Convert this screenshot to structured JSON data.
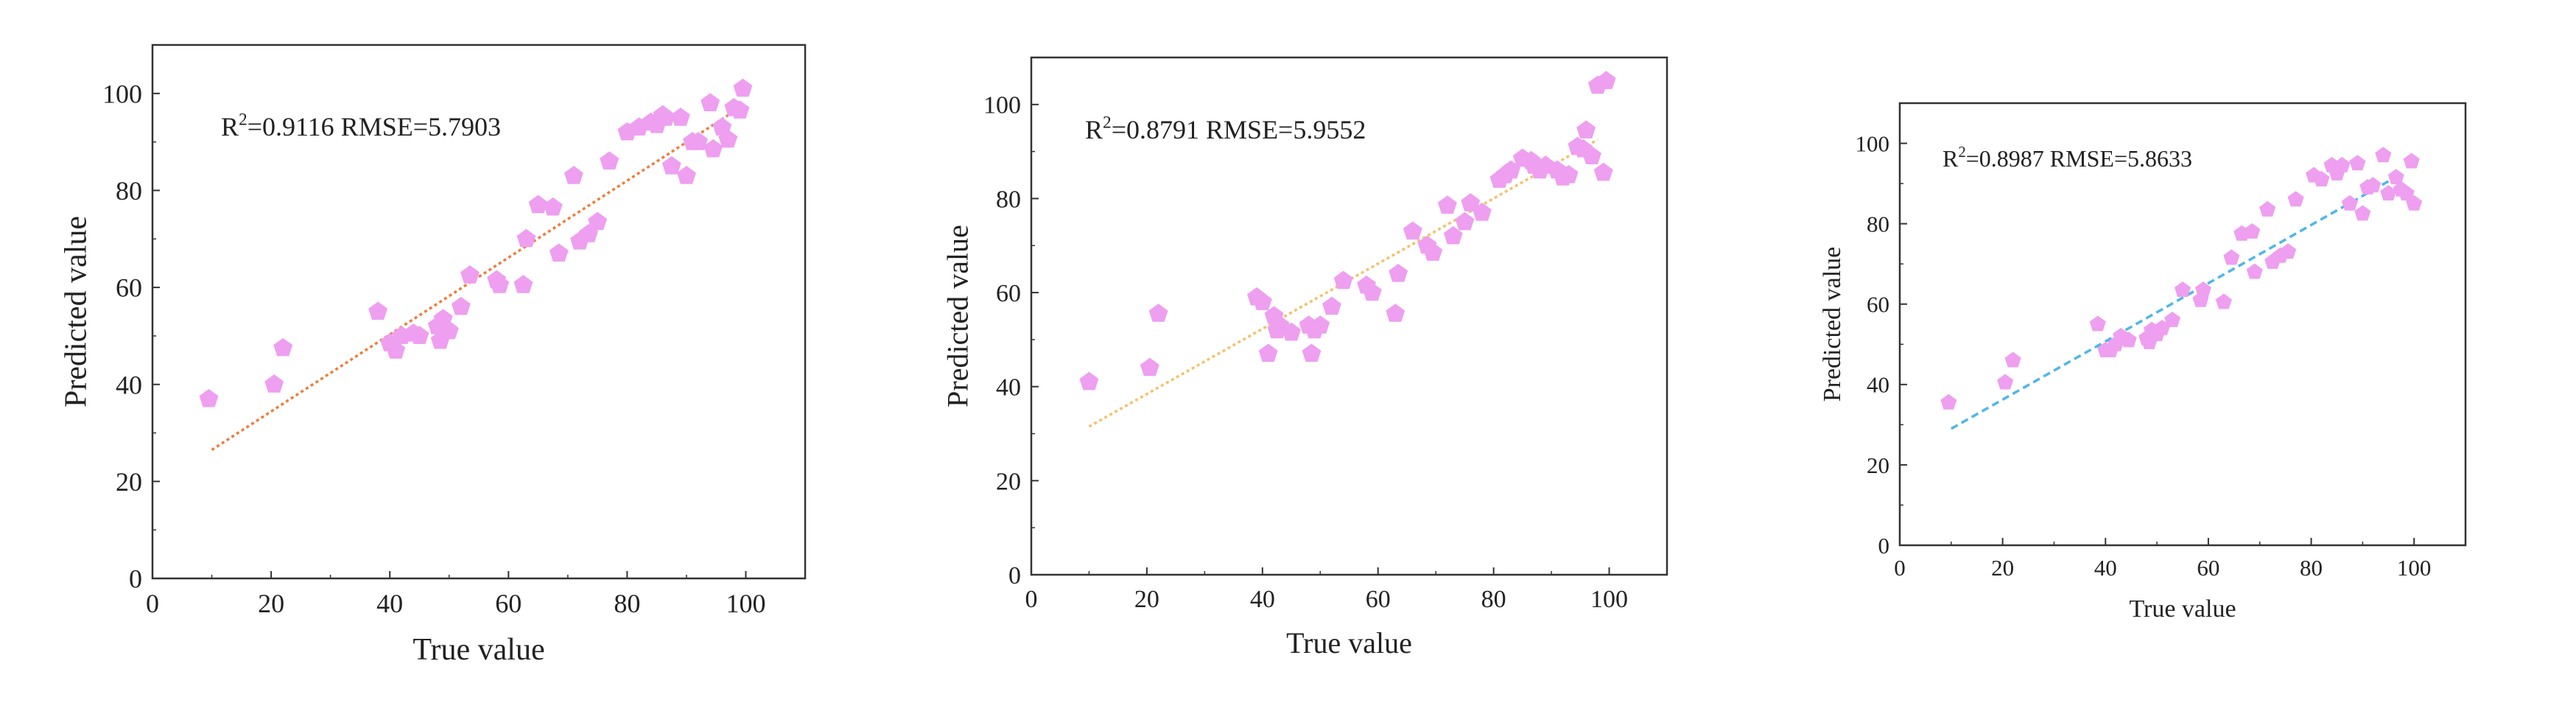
{
  "chart_data": [
    {
      "type": "scatter",
      "annotation": {
        "r_prefix": "R",
        "r_sup": "2",
        "text": "=0.9116 RMSE=5.7903"
      },
      "xlabel": "True value",
      "ylabel": "Predicted value",
      "xlim": [
        0,
        110
      ],
      "ylim": [
        0,
        110
      ],
      "xticks": [
        "0",
        "20",
        "40",
        "60",
        "80",
        "100"
      ],
      "yticks": [
        "0",
        "20",
        "40",
        "60",
        "80",
        "100"
      ],
      "marker": "pentagon",
      "marker_color": "#ee9ff0",
      "fit_line": {
        "x": [
          10,
          97
        ],
        "y": [
          26.5,
          95.5
        ],
        "color": "#ef7d3b",
        "style": "dotted"
      },
      "points": {
        "x": [
          9.5,
          20.5,
          22,
          38,
          40,
          41,
          42,
          44,
          45,
          48,
          48.5,
          49,
          49.5,
          50,
          52,
          53.5,
          58,
          58.5,
          62.5,
          63,
          65,
          67.5,
          68.5,
          71,
          72,
          73.5,
          75,
          77,
          80,
          82,
          84,
          85,
          86,
          86.5,
          87.5,
          89,
          90,
          91,
          92,
          94,
          94.5,
          96,
          97,
          98,
          99,
          99.5
        ],
        "y": [
          37,
          40,
          47.5,
          55,
          48.5,
          47,
          50,
          50.5,
          50,
          52,
          49,
          53.5,
          51.5,
          51,
          56,
          62.5,
          61.5,
          60.5,
          60.5,
          70,
          77,
          76.5,
          67,
          83,
          69.5,
          71,
          73.5,
          86,
          92,
          93,
          94,
          93.5,
          95.5,
          95,
          85,
          95,
          83,
          90,
          90,
          98,
          88.5,
          93,
          90.5,
          97,
          96.5,
          101
        ]
      }
    },
    {
      "type": "scatter",
      "annotation": {
        "r_prefix": "R",
        "r_sup": "2",
        "text": "=0.8791 RMSE=5.9552"
      },
      "xlabel": "True value",
      "ylabel": "Predicted value",
      "xlim": [
        0,
        110
      ],
      "ylim": [
        0,
        110
      ],
      "xticks": [
        "0",
        "20",
        "40",
        "60",
        "80",
        "100"
      ],
      "yticks": [
        "0",
        "20",
        "40",
        "60",
        "80",
        "100"
      ],
      "marker": "pentagon",
      "marker_color": "#ee9ff0",
      "fit_line": {
        "x": [
          10,
          98
        ],
        "y": [
          31.5,
          92.5
        ],
        "color": "#f2c26b",
        "style": "dotted"
      },
      "points": {
        "x": [
          10,
          20.5,
          22,
          39,
          40,
          41,
          42,
          42.5,
          43,
          45,
          48,
          48.5,
          49,
          50,
          52,
          54,
          58,
          59,
          63,
          63.5,
          66,
          68.5,
          69.5,
          72,
          73,
          75,
          76,
          78,
          81,
          82,
          83,
          85,
          86.5,
          87,
          88,
          89,
          91,
          92,
          93,
          94.5,
          95.5,
          96,
          97,
          98,
          99,
          99.5
        ],
        "y": [
          41,
          44,
          55.5,
          59,
          58,
          47,
          55,
          52,
          53,
          51.5,
          53,
          47,
          52,
          53,
          57,
          62.5,
          61.5,
          60,
          55.5,
          64,
          73,
          70,
          68.5,
          78.5,
          72,
          75,
          79,
          77,
          84,
          85,
          86,
          88.5,
          88,
          87,
          86,
          87,
          86,
          84.5,
          85,
          91,
          90.5,
          94.5,
          89,
          104,
          85.5,
          105
        ]
      }
    },
    {
      "type": "scatter",
      "annotation": {
        "r_prefix": "R",
        "r_sup": "2",
        "text": "=0.8987 RMSE=5.8633"
      },
      "xlabel": "True value",
      "ylabel": "Predicted value",
      "xlim": [
        0,
        110
      ],
      "ylim": [
        0,
        110
      ],
      "xticks": [
        "0",
        "20",
        "40",
        "60",
        "80",
        "100"
      ],
      "yticks": [
        "0",
        "20",
        "40",
        "60",
        "80",
        "100"
      ],
      "marker": "pentagon",
      "marker_color": "#ee9ff0",
      "fit_line": {
        "x": [
          10,
          97
        ],
        "y": [
          29,
          92
        ],
        "color": "#4fb6ea",
        "style": "dashed"
      },
      "points": {
        "x": [
          9.5,
          20.5,
          22,
          38.5,
          40,
          41,
          42,
          43,
          44.5,
          48,
          48.5,
          49,
          50,
          51,
          53,
          55,
          58.5,
          59,
          63,
          64.5,
          66.5,
          68.5,
          69,
          71.5,
          72.5,
          74,
          75.5,
          77,
          80.5,
          82,
          84,
          85,
          86,
          87.5,
          89,
          90,
          91,
          92,
          94,
          95,
          96.5,
          97.5,
          98.5,
          99.5,
          100
        ],
        "y": [
          35.5,
          40.5,
          46,
          55,
          48.5,
          48.5,
          50,
          52,
          51,
          51.5,
          50.5,
          53.5,
          52.5,
          54,
          56,
          63.5,
          61,
          63.5,
          60.5,
          71.5,
          77.5,
          78,
          68,
          83.5,
          70.5,
          72,
          73,
          86,
          92,
          91,
          94.5,
          92.5,
          94.5,
          85,
          95,
          82.5,
          89,
          89.5,
          97,
          87.5,
          91.5,
          88.5,
          87.5,
          95.5,
          85
        ]
      }
    }
  ]
}
